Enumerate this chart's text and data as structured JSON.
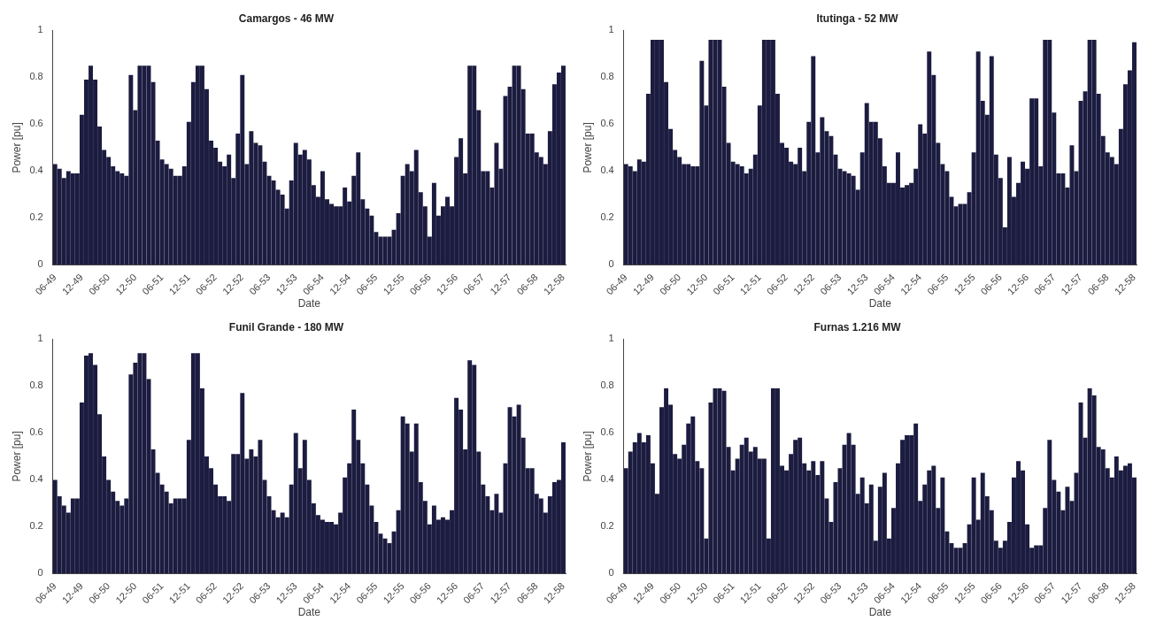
{
  "chart_data": [
    {
      "type": "bar",
      "title": "Camargos - 46 MW",
      "xlabel": "Date",
      "ylabel": "Power [pu]",
      "color": "#1c1c40",
      "ylim": [
        0,
        1
      ],
      "yticks": [
        0,
        0.2,
        0.4,
        0.6,
        0.8,
        1
      ],
      "categories": [
        "06-49",
        null,
        null,
        null,
        null,
        null,
        "12-49",
        null,
        null,
        null,
        null,
        null,
        "06-50",
        null,
        null,
        null,
        null,
        null,
        "12-50",
        null,
        null,
        null,
        null,
        null,
        "06-51",
        null,
        null,
        null,
        null,
        null,
        "12-51",
        null,
        null,
        null,
        null,
        null,
        "06-52",
        null,
        null,
        null,
        null,
        null,
        "12-52",
        null,
        null,
        null,
        null,
        null,
        "06-53",
        null,
        null,
        null,
        null,
        null,
        "12-53",
        null,
        null,
        null,
        null,
        null,
        "06-54",
        null,
        null,
        null,
        null,
        null,
        "12-54",
        null,
        null,
        null,
        null,
        null,
        "06-55",
        null,
        null,
        null,
        null,
        null,
        "12-55",
        null,
        null,
        null,
        null,
        null,
        "06-56",
        null,
        null,
        null,
        null,
        null,
        "12-56",
        null,
        null,
        null,
        null,
        null,
        "06-57",
        null,
        null,
        null,
        null,
        null,
        "12-57",
        null,
        null,
        null,
        null,
        null,
        "06-58",
        null,
        null,
        null,
        null,
        null,
        "12-58"
      ],
      "values": [
        0.43,
        0.41,
        0.37,
        0.4,
        0.39,
        0.39,
        0.64,
        0.79,
        0.85,
        0.79,
        0.59,
        0.49,
        0.46,
        0.42,
        0.4,
        0.39,
        0.38,
        0.81,
        0.66,
        0.85,
        0.85,
        0.85,
        0.78,
        0.53,
        0.45,
        0.43,
        0.41,
        0.38,
        0.38,
        0.42,
        0.61,
        0.78,
        0.85,
        0.85,
        0.75,
        0.53,
        0.5,
        0.44,
        0.42,
        0.47,
        0.37,
        0.56,
        0.81,
        0.43,
        0.57,
        0.52,
        0.51,
        0.44,
        0.38,
        0.36,
        0.32,
        0.3,
        0.24,
        0.36,
        0.52,
        0.47,
        0.49,
        0.45,
        0.34,
        0.29,
        0.4,
        0.28,
        0.26,
        0.25,
        0.25,
        0.33,
        0.27,
        0.38,
        0.48,
        0.28,
        0.24,
        0.21,
        0.14,
        0.12,
        0.12,
        0.12,
        0.15,
        0.22,
        0.38,
        0.43,
        0.4,
        0.49,
        0.31,
        0.25,
        0.12,
        0.35,
        0.21,
        0.25,
        0.29,
        0.25,
        0.46,
        0.54,
        0.39,
        0.85,
        0.85,
        0.66,
        0.4,
        0.4,
        0.33,
        0.52,
        0.41,
        0.72,
        0.76,
        0.85,
        0.85,
        0.75,
        0.56,
        0.56,
        0.48,
        0.46,
        0.43,
        0.57,
        0.77,
        0.82,
        0.85
      ]
    },
    {
      "type": "bar",
      "title": "Itutinga - 52 MW",
      "xlabel": "Date",
      "ylabel": "Power [pu]",
      "color": "#1c1c40",
      "ylim": [
        0,
        1
      ],
      "yticks": [
        0,
        0.2,
        0.4,
        0.6,
        0.8,
        1
      ],
      "categories": [
        "06-49",
        null,
        null,
        null,
        null,
        null,
        "12-49",
        null,
        null,
        null,
        null,
        null,
        "06-50",
        null,
        null,
        null,
        null,
        null,
        "12-50",
        null,
        null,
        null,
        null,
        null,
        "06-51",
        null,
        null,
        null,
        null,
        null,
        "12-51",
        null,
        null,
        null,
        null,
        null,
        "06-52",
        null,
        null,
        null,
        null,
        null,
        "12-52",
        null,
        null,
        null,
        null,
        null,
        "06-53",
        null,
        null,
        null,
        null,
        null,
        "12-53",
        null,
        null,
        null,
        null,
        null,
        "06-54",
        null,
        null,
        null,
        null,
        null,
        "12-54",
        null,
        null,
        null,
        null,
        null,
        "06-55",
        null,
        null,
        null,
        null,
        null,
        "12-55",
        null,
        null,
        null,
        null,
        null,
        "06-56",
        null,
        null,
        null,
        null,
        null,
        "12-56",
        null,
        null,
        null,
        null,
        null,
        "06-57",
        null,
        null,
        null,
        null,
        null,
        "12-57",
        null,
        null,
        null,
        null,
        null,
        "06-58",
        null,
        null,
        null,
        null,
        null,
        "12-58"
      ],
      "values": [
        0.43,
        0.42,
        0.4,
        0.45,
        0.44,
        0.73,
        0.96,
        0.96,
        0.96,
        0.78,
        0.58,
        0.49,
        0.46,
        0.43,
        0.43,
        0.42,
        0.42,
        0.87,
        0.68,
        0.96,
        0.96,
        0.96,
        0.76,
        0.52,
        0.44,
        0.43,
        0.42,
        0.39,
        0.41,
        0.47,
        0.68,
        0.96,
        0.96,
        0.96,
        0.73,
        0.52,
        0.5,
        0.44,
        0.43,
        0.5,
        0.4,
        0.61,
        0.89,
        0.48,
        0.63,
        0.57,
        0.55,
        0.47,
        0.41,
        0.4,
        0.39,
        0.38,
        0.32,
        0.48,
        0.69,
        0.61,
        0.61,
        0.54,
        0.42,
        0.35,
        0.35,
        0.48,
        0.33,
        0.34,
        0.35,
        0.41,
        0.6,
        0.56,
        0.91,
        0.81,
        0.52,
        0.43,
        0.4,
        0.29,
        0.25,
        0.26,
        0.26,
        0.31,
        0.48,
        0.91,
        0.7,
        0.64,
        0.89,
        0.47,
        0.37,
        0.16,
        0.46,
        0.29,
        0.35,
        0.44,
        0.41,
        0.71,
        0.71,
        0.42,
        0.96,
        0.96,
        0.65,
        0.39,
        0.39,
        0.33,
        0.51,
        0.4,
        0.7,
        0.74,
        0.96,
        0.96,
        0.73,
        0.55,
        0.48,
        0.46,
        0.43,
        0.58,
        0.77,
        0.83,
        0.95
      ]
    },
    {
      "type": "bar",
      "title": "Funil Grande - 180 MW",
      "xlabel": "Date",
      "ylabel": "Power [pu]",
      "color": "#1c1c40",
      "ylim": [
        0,
        1
      ],
      "yticks": [
        0,
        0.2,
        0.4,
        0.6,
        0.8,
        1
      ],
      "categories": [
        "06-49",
        null,
        null,
        null,
        null,
        null,
        "12-49",
        null,
        null,
        null,
        null,
        null,
        "06-50",
        null,
        null,
        null,
        null,
        null,
        "12-50",
        null,
        null,
        null,
        null,
        null,
        "06-51",
        null,
        null,
        null,
        null,
        null,
        "12-51",
        null,
        null,
        null,
        null,
        null,
        "06-52",
        null,
        null,
        null,
        null,
        null,
        "12-52",
        null,
        null,
        null,
        null,
        null,
        "06-53",
        null,
        null,
        null,
        null,
        null,
        "12-53",
        null,
        null,
        null,
        null,
        null,
        "06-54",
        null,
        null,
        null,
        null,
        null,
        "12-54",
        null,
        null,
        null,
        null,
        null,
        "06-55",
        null,
        null,
        null,
        null,
        null,
        "12-55",
        null,
        null,
        null,
        null,
        null,
        "06-56",
        null,
        null,
        null,
        null,
        null,
        "12-56",
        null,
        null,
        null,
        null,
        null,
        "06-57",
        null,
        null,
        null,
        null,
        null,
        "12-57",
        null,
        null,
        null,
        null,
        null,
        "06-58",
        null,
        null,
        null,
        null,
        null,
        "12-58"
      ],
      "values": [
        0.4,
        0.33,
        0.29,
        0.26,
        0.32,
        0.32,
        0.73,
        0.93,
        0.94,
        0.89,
        0.68,
        0.5,
        0.4,
        0.35,
        0.31,
        0.29,
        0.32,
        0.85,
        0.9,
        0.94,
        0.94,
        0.83,
        0.53,
        0.43,
        0.38,
        0.35,
        0.3,
        0.32,
        0.32,
        0.32,
        0.57,
        0.94,
        0.94,
        0.79,
        0.5,
        0.45,
        0.38,
        0.33,
        0.33,
        0.31,
        0.51,
        0.51,
        0.77,
        0.49,
        0.53,
        0.5,
        0.57,
        0.4,
        0.33,
        0.27,
        0.24,
        0.26,
        0.24,
        0.38,
        0.6,
        0.45,
        0.57,
        0.4,
        0.3,
        0.25,
        0.23,
        0.22,
        0.22,
        0.21,
        0.26,
        0.41,
        0.47,
        0.7,
        0.57,
        0.47,
        0.38,
        0.29,
        0.22,
        0.17,
        0.15,
        0.13,
        0.18,
        0.27,
        0.67,
        0.64,
        0.52,
        0.64,
        0.39,
        0.31,
        0.21,
        0.29,
        0.23,
        0.24,
        0.23,
        0.27,
        0.75,
        0.7,
        0.53,
        0.91,
        0.89,
        0.52,
        0.38,
        0.33,
        0.27,
        0.34,
        0.26,
        0.47,
        0.71,
        0.67,
        0.72,
        0.58,
        0.45,
        0.45,
        0.34,
        0.32,
        0.26,
        0.33,
        0.39,
        0.4,
        0.56
      ]
    },
    {
      "type": "bar",
      "title": "Furnas 1.216 MW",
      "xlabel": "Date",
      "ylabel": "Power [pu]",
      "color": "#1c1c40",
      "ylim": [
        0,
        1
      ],
      "yticks": [
        0,
        0.2,
        0.4,
        0.6,
        0.8,
        1
      ],
      "categories": [
        "06-49",
        null,
        null,
        null,
        null,
        null,
        "12-49",
        null,
        null,
        null,
        null,
        null,
        "06-50",
        null,
        null,
        null,
        null,
        null,
        "12-50",
        null,
        null,
        null,
        null,
        null,
        "06-51",
        null,
        null,
        null,
        null,
        null,
        "12-51",
        null,
        null,
        null,
        null,
        null,
        "06-52",
        null,
        null,
        null,
        null,
        null,
        "12-52",
        null,
        null,
        null,
        null,
        null,
        "06-53",
        null,
        null,
        null,
        null,
        null,
        "12-53",
        null,
        null,
        null,
        null,
        null,
        "06-54",
        null,
        null,
        null,
        null,
        null,
        "12-54",
        null,
        null,
        null,
        null,
        null,
        "06-55",
        null,
        null,
        null,
        null,
        null,
        "12-55",
        null,
        null,
        null,
        null,
        null,
        "06-56",
        null,
        null,
        null,
        null,
        null,
        "12-56",
        null,
        null,
        null,
        null,
        null,
        "06-57",
        null,
        null,
        null,
        null,
        null,
        "12-57",
        null,
        null,
        null,
        null,
        null,
        "06-58",
        null,
        null,
        null,
        null,
        null,
        "12-58"
      ],
      "values": [
        0.45,
        0.52,
        0.56,
        0.6,
        0.56,
        0.59,
        0.47,
        0.34,
        0.71,
        0.79,
        0.72,
        0.51,
        0.49,
        0.55,
        0.64,
        0.67,
        0.48,
        0.45,
        0.15,
        0.73,
        0.79,
        0.79,
        0.78,
        0.54,
        0.44,
        0.49,
        0.55,
        0.58,
        0.52,
        0.54,
        0.49,
        0.49,
        0.15,
        0.79,
        0.79,
        0.46,
        0.44,
        0.51,
        0.57,
        0.58,
        0.47,
        0.44,
        0.48,
        0.42,
        0.48,
        0.32,
        0.22,
        0.39,
        0.45,
        0.55,
        0.6,
        0.55,
        0.34,
        0.41,
        0.3,
        0.38,
        0.14,
        0.37,
        0.43,
        0.15,
        0.28,
        0.47,
        0.57,
        0.59,
        0.59,
        0.64,
        0.31,
        0.38,
        0.44,
        0.46,
        0.28,
        0.41,
        0.18,
        0.13,
        0.11,
        0.11,
        0.13,
        0.21,
        0.41,
        0.23,
        0.43,
        0.33,
        0.27,
        0.14,
        0.11,
        0.14,
        0.22,
        0.41,
        0.48,
        0.44,
        0.21,
        0.11,
        0.12,
        0.12,
        0.28,
        0.57,
        0.4,
        0.35,
        0.27,
        0.37,
        0.31,
        0.43,
        0.73,
        0.58,
        0.79,
        0.76,
        0.54,
        0.53,
        0.45,
        0.41,
        0.5,
        0.44,
        0.46,
        0.47,
        0.41
      ]
    }
  ]
}
